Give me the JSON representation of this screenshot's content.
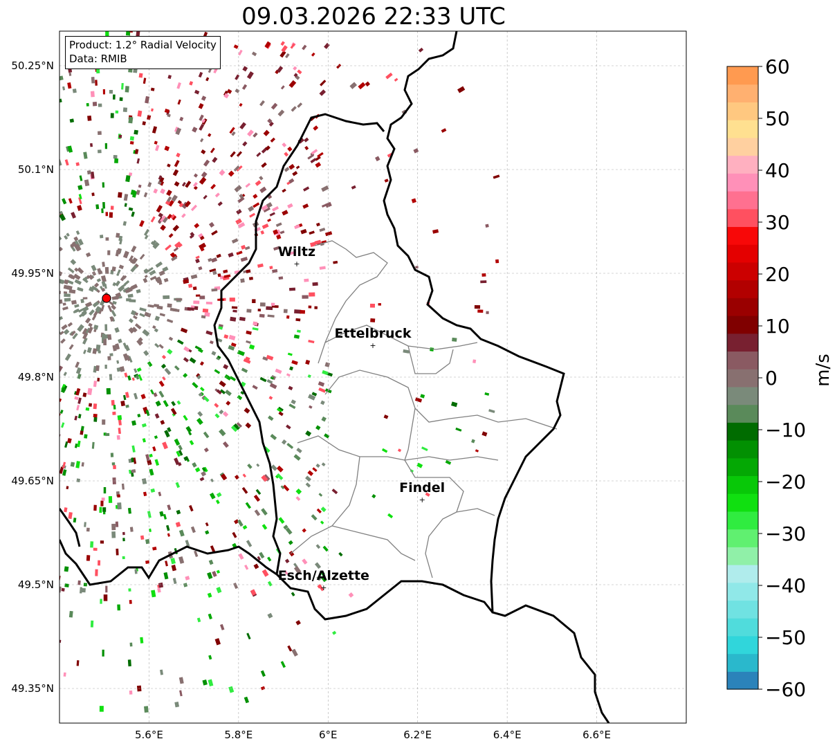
{
  "title": "09.03.2026 22:33 UTC",
  "info": {
    "product": "Product: 1.2° Radial Velocity",
    "data": "Data: RMIB"
  },
  "map": {
    "lon_range": [
      5.4,
      6.8
    ],
    "lat_range": [
      49.3,
      50.3
    ],
    "lon_ticks": [
      {
        "value": 5.6,
        "label": "5.6°E"
      },
      {
        "value": 5.8,
        "label": "5.8°E"
      },
      {
        "value": 6.0,
        "label": "6°E"
      },
      {
        "value": 6.2,
        "label": "6.2°E"
      },
      {
        "value": 6.4,
        "label": "6.4°E"
      },
      {
        "value": 6.6,
        "label": "6.6°E"
      }
    ],
    "lat_ticks": [
      {
        "value": 50.25,
        "label": "50.25°N"
      },
      {
        "value": 50.1,
        "label": "50.1°N"
      },
      {
        "value": 49.95,
        "label": "49.95°N"
      },
      {
        "value": 49.8,
        "label": "49.8°N"
      },
      {
        "value": 49.65,
        "label": "49.65°N"
      },
      {
        "value": 49.5,
        "label": "49.5°N"
      },
      {
        "value": 49.35,
        "label": "49.35°N"
      }
    ],
    "radar_site": {
      "lon": 5.505,
      "lat": 49.914
    },
    "cities": [
      {
        "name": "Wiltz",
        "lon": 5.93,
        "lat": 49.965
      },
      {
        "name": "Ettelbruck",
        "lon": 6.1,
        "lat": 49.847
      },
      {
        "name": "Findel",
        "lon": 6.21,
        "lat": 49.624
      },
      {
        "name": "Esch/Alzette",
        "lon": 5.99,
        "lat": 49.497
      }
    ]
  },
  "colorbar": {
    "label": "m/s",
    "min": -60,
    "max": 60,
    "ticks": [
      {
        "value": 60,
        "label": "60"
      },
      {
        "value": 50,
        "label": "50"
      },
      {
        "value": 40,
        "label": "40"
      },
      {
        "value": 30,
        "label": "30"
      },
      {
        "value": 20,
        "label": "20"
      },
      {
        "value": 10,
        "label": "10"
      },
      {
        "value": 0,
        "label": "0"
      },
      {
        "value": -10,
        "label": "−10"
      },
      {
        "value": -20,
        "label": "−20"
      },
      {
        "value": -30,
        "label": "−30"
      },
      {
        "value": -40,
        "label": "−40"
      },
      {
        "value": -50,
        "label": "−50"
      },
      {
        "value": -60,
        "label": "−60"
      }
    ],
    "colors": [
      "#2b83ba",
      "#2ab8cc",
      "#30d6db",
      "#50dcdc",
      "#70e2e2",
      "#90e8e8",
      "#b0ecec",
      "#90f0a8",
      "#60f070",
      "#30ec40",
      "#10e010",
      "#08c808",
      "#04a804",
      "#029002",
      "#006c00",
      "#5a8a5a",
      "#7a8a7a",
      "#887070",
      "#8a5a62",
      "#782030",
      "#800000",
      "#9a0000",
      "#b20000",
      "#cc0000",
      "#e40000",
      "#f80808",
      "#ff5060",
      "#ff7090",
      "#ff90b8",
      "#ffb0c0",
      "#ffd0a0",
      "#ffe090",
      "#ffc880",
      "#ffb070",
      "#ff9a50"
    ]
  }
}
